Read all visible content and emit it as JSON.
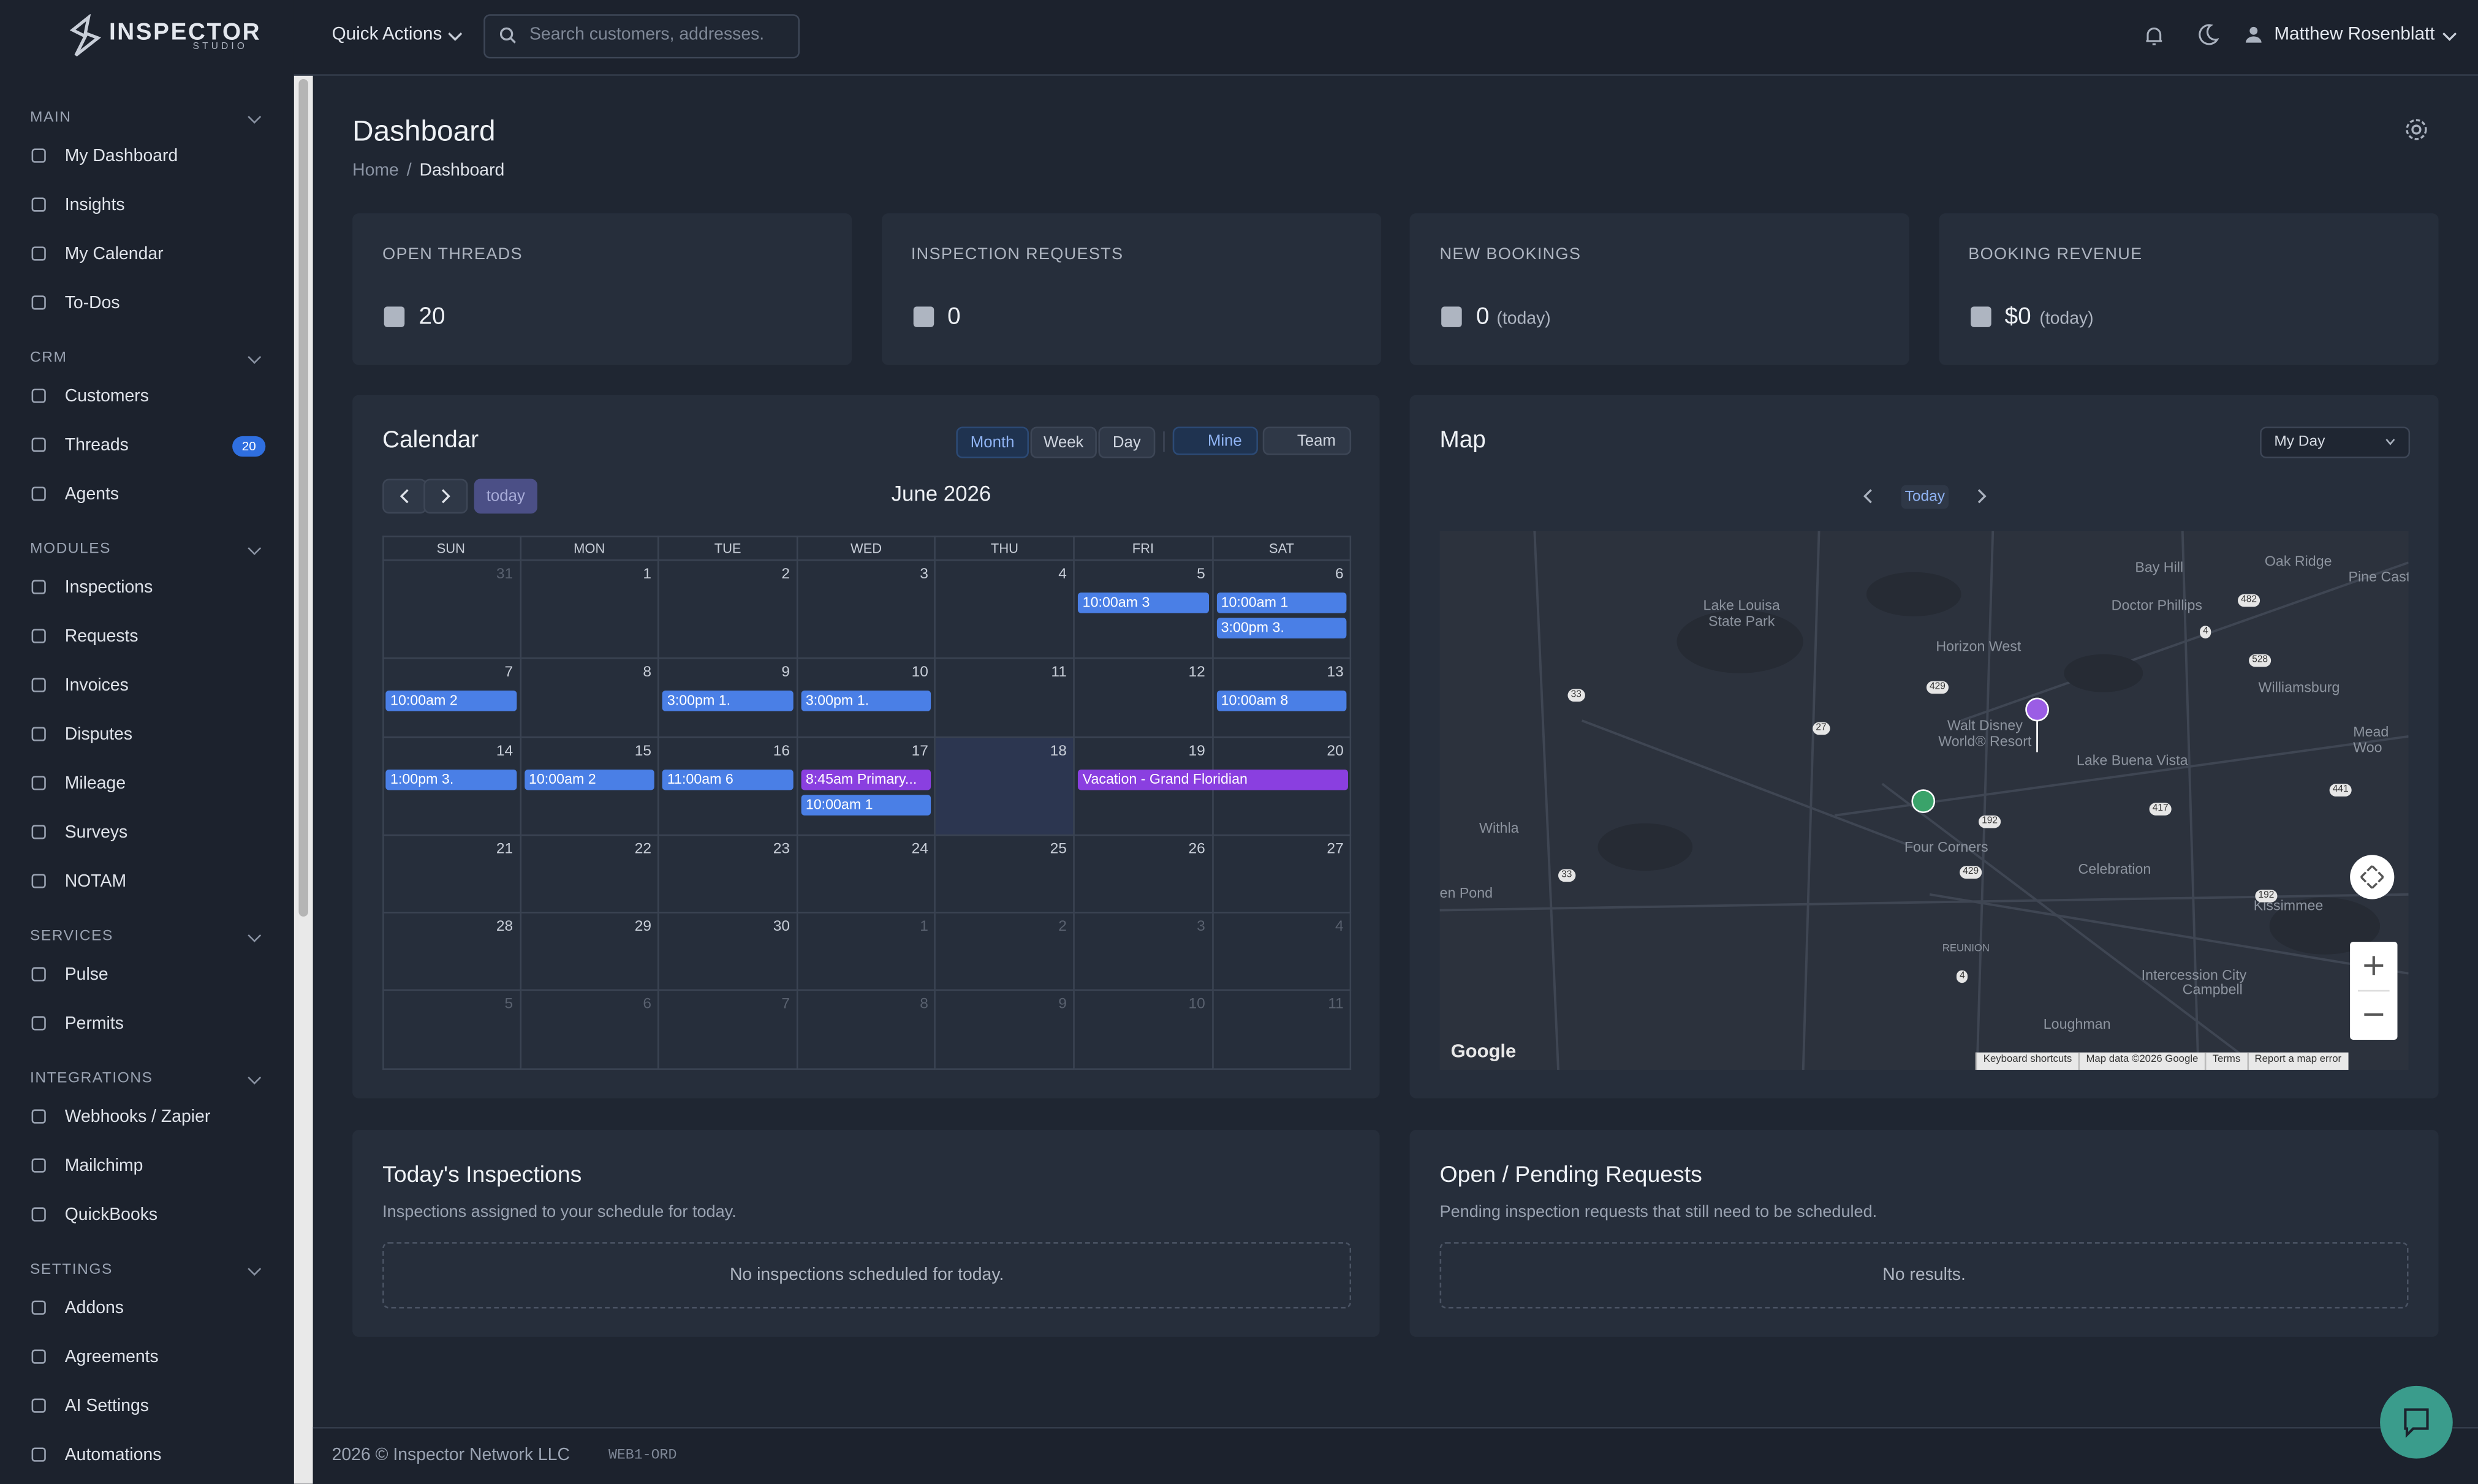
{
  "brand": {
    "name": "INSPECTOR",
    "sub": "STUDIO"
  },
  "topbar": {
    "quick_actions": "Quick Actions",
    "search_placeholder": "Search customers, addresses.",
    "user": "Matthew Rosenblatt"
  },
  "sidebar": [
    {
      "title": "MAIN",
      "items": [
        {
          "label": "My Dashboard"
        },
        {
          "label": "Insights"
        },
        {
          "label": "My Calendar"
        },
        {
          "label": "To-Dos"
        }
      ]
    },
    {
      "title": "CRM",
      "items": [
        {
          "label": "Customers"
        },
        {
          "label": "Threads",
          "badge": "20"
        },
        {
          "label": "Agents"
        }
      ]
    },
    {
      "title": "MODULES",
      "items": [
        {
          "label": "Inspections"
        },
        {
          "label": "Requests"
        },
        {
          "label": "Invoices"
        },
        {
          "label": "Disputes"
        },
        {
          "label": "Mileage"
        },
        {
          "label": "Surveys"
        },
        {
          "label": "NOTAM"
        }
      ]
    },
    {
      "title": "SERVICES",
      "items": [
        {
          "label": "Pulse"
        },
        {
          "label": "Permits"
        }
      ]
    },
    {
      "title": "INTEGRATIONS",
      "items": [
        {
          "label": "Webhooks / Zapier"
        },
        {
          "label": "Mailchimp"
        },
        {
          "label": "QuickBooks"
        }
      ]
    },
    {
      "title": "SETTINGS",
      "items": [
        {
          "label": "Addons"
        },
        {
          "label": "Agreements"
        },
        {
          "label": "AI Settings"
        },
        {
          "label": "Automations"
        }
      ]
    }
  ],
  "page": {
    "title": "Dashboard",
    "breadcrumb": [
      "Home",
      "Dashboard"
    ]
  },
  "stats": [
    {
      "label": "OPEN THREADS",
      "value": "20"
    },
    {
      "label": "INSPECTION REQUESTS",
      "value": "0"
    },
    {
      "label": "NEW BOOKINGS",
      "value": "0",
      "suffix": "(today)"
    },
    {
      "label": "BOOKING REVENUE",
      "value": "$0",
      "suffix": "(today)"
    }
  ],
  "calendar": {
    "title": "Calendar",
    "views": [
      "Month",
      "Week",
      "Day"
    ],
    "filters": [
      "Mine",
      "Team"
    ],
    "today_button": "today",
    "month": "June 2026",
    "weekdays": [
      "SUN",
      "MON",
      "TUE",
      "WED",
      "THU",
      "FRI",
      "SAT"
    ],
    "weeks": [
      [
        31,
        1,
        2,
        3,
        4,
        5,
        6
      ],
      [
        7,
        8,
        9,
        10,
        11,
        12,
        13
      ],
      [
        14,
        15,
        16,
        17,
        18,
        19,
        20
      ],
      [
        21,
        22,
        23,
        24,
        25,
        26,
        27
      ],
      [
        28,
        29,
        30,
        1,
        2,
        3,
        4
      ],
      [
        5,
        6,
        7,
        8,
        9,
        10,
        11
      ]
    ],
    "today": 18,
    "events": [
      {
        "date": 5,
        "label": "10:00am 3",
        "color": "#4a7fe6"
      },
      {
        "date": 6,
        "label": "10:00am 1",
        "color": "#4a7fe6"
      },
      {
        "date": 6,
        "label": "3:00pm 3.",
        "color": "#4a7fe6"
      },
      {
        "date": 7,
        "label": "10:00am 2",
        "color": "#4a7fe6"
      },
      {
        "date": 9,
        "label": "3:00pm 1.",
        "color": "#4a7fe6"
      },
      {
        "date": 10,
        "label": "3:00pm 1.",
        "color": "#4a7fe6"
      },
      {
        "date": 13,
        "label": "10:00am 8",
        "color": "#4a7fe6"
      },
      {
        "date": 14,
        "label": "1:00pm 3.",
        "color": "#4a7fe6"
      },
      {
        "date": 15,
        "label": "10:00am 2",
        "color": "#4a7fe6"
      },
      {
        "date": 16,
        "label": "11:00am 6",
        "color": "#4a7fe6"
      },
      {
        "date": 17,
        "label": "8:45am Primary...",
        "color": "#8a3fe0"
      },
      {
        "date": 17,
        "label": "10:00am 1",
        "color": "#4a7fe6"
      },
      {
        "date": 19,
        "end": 20,
        "label": "Vacation - Grand Floridian",
        "color": "#8a3fe0"
      }
    ]
  },
  "map": {
    "title": "Map",
    "select": "My Day",
    "today": "Today",
    "places": [
      "Bay Hill",
      "Oak Ridge",
      "Pine Castl",
      "Doctor Phillips",
      "Lake Louisa State Park",
      "Horizon West",
      "Williamsburg",
      "Walt Disney World® Resort",
      "Lake Buena Vista",
      "Withla",
      "Four Corners",
      "Celebration",
      "Kissimmee",
      "en Pond",
      "REUNION",
      "Intercession City",
      "Campbell",
      "Loughman",
      "Mead Woo"
    ],
    "roads": [
      "482",
      "528",
      "429",
      "33",
      "27",
      "192",
      "417",
      "441",
      "429",
      "33",
      "192",
      "4",
      "4"
    ],
    "logo": "Google",
    "attribution": [
      "Keyboard shortcuts",
      "Map data ©2026 Google",
      "Terms",
      "Report a map error"
    ]
  },
  "panels": [
    {
      "title": "Today's Inspections",
      "subtitle": "Inspections assigned to your schedule for today.",
      "empty": "No inspections scheduled for today."
    },
    {
      "title": "Open / Pending Requests",
      "subtitle": "Pending inspection requests that still need to be scheduled.",
      "empty": "No results."
    }
  ],
  "footer": {
    "copyright": "2026 © Inspector Network LLC",
    "server": "WEB1-ORD"
  }
}
